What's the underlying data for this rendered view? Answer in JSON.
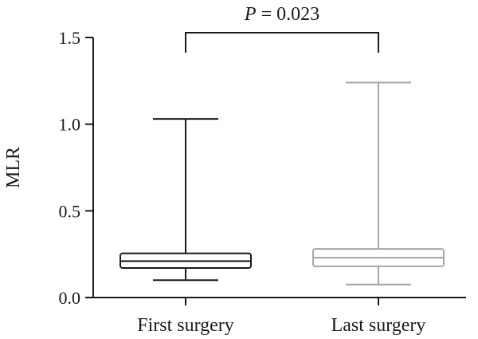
{
  "chart_data": {
    "type": "box",
    "ylabel": "MLR",
    "ylim": [
      0,
      1.5
    ],
    "yticks": [
      0.0,
      0.5,
      1.0,
      1.5
    ],
    "ytick_labels": [
      "0.0",
      "0.5",
      "1.0",
      "1.5"
    ],
    "categories": [
      "First surgery",
      "Last surgery"
    ],
    "boxes": [
      {
        "category": "First surgery",
        "whisker_low": 0.1,
        "q1": 0.17,
        "median": 0.21,
        "q3": 0.255,
        "whisker_high": 1.03,
        "color": "#1a1a1a"
      },
      {
        "category": "Last surgery",
        "whisker_low": 0.075,
        "q1": 0.18,
        "median": 0.23,
        "q3": 0.28,
        "whisker_high": 1.24,
        "color": "#a6a6a6"
      }
    ],
    "annotation": {
      "p_symbol": "P",
      "p_text": " = 0.023",
      "groups": [
        "First surgery",
        "Last surgery"
      ]
    },
    "grid": false
  }
}
